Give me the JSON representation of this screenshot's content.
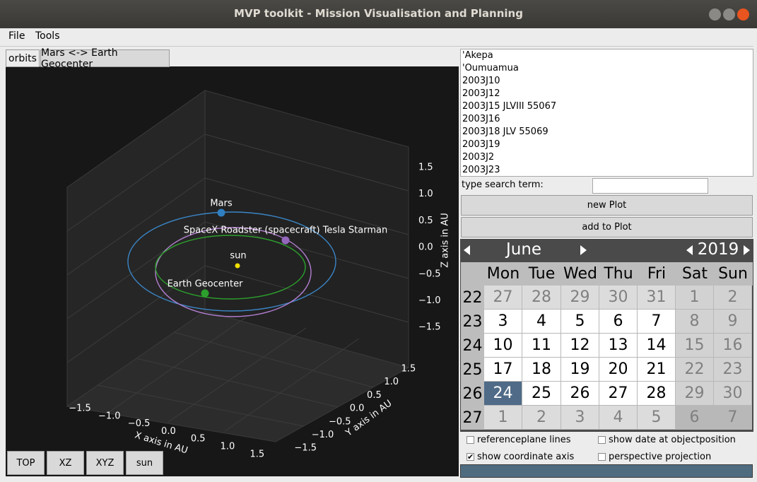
{
  "window": {
    "title": "MVP toolkit - Mission Visualisation and Planning"
  },
  "menu": [
    "File",
    "Tools"
  ],
  "tabs": [
    "orbits",
    "Mars <-> Earth Geocenter"
  ],
  "plot": {
    "objects": [
      "Mars",
      "SpaceX Roadster (spacecraft) Tesla Starman",
      "sun",
      "Earth Geocenter"
    ],
    "z_axis": {
      "label": "Z axis in AU",
      "ticks": [
        "1.5",
        "1.0",
        "0.5",
        "0.0",
        "−0.5",
        "−1.0",
        "−1.5"
      ]
    },
    "y_axis": {
      "label": "Y axis in AU",
      "ticks": [
        "1.5",
        "1.0",
        "0.5",
        "0.0",
        "−0.5",
        "−1.0",
        "−1.5"
      ]
    },
    "x_axis": {
      "label": "X axis in AU",
      "ticks": [
        "−1.5",
        "−1.0",
        "−0.5",
        "0.0",
        "0.5",
        "1.0",
        "1.5"
      ]
    }
  },
  "view_buttons": [
    "TOP",
    "XZ",
    "XYZ",
    "sun"
  ],
  "object_list": [
    "'Akepa",
    "'Oumuamua",
    "2003J10",
    "2003J12",
    "2003J15 JLVIII 55067",
    "2003J16",
    "2003J18 JLV 55069",
    "2003J19",
    "2003J2",
    "2003J23"
  ],
  "search": {
    "label": "type search term:"
  },
  "actions": [
    "new Plot",
    "add to Plot"
  ],
  "calendar": {
    "month": "June",
    "year": 2019,
    "weekdays": [
      "Mon",
      "Tue",
      "Wed",
      "Thu",
      "Fri",
      "Sat",
      "Sun"
    ],
    "weeks": [
      {
        "number": 22,
        "days": [
          27,
          28,
          29,
          30,
          31,
          1,
          2
        ]
      },
      {
        "number": 23,
        "days": [
          3,
          4,
          5,
          6,
          7,
          8,
          9
        ]
      },
      {
        "number": 24,
        "days": [
          10,
          11,
          12,
          13,
          14,
          15,
          16
        ]
      },
      {
        "number": 25,
        "days": [
          17,
          18,
          19,
          20,
          21,
          22,
          23
        ]
      },
      {
        "number": 26,
        "days": [
          24,
          25,
          26,
          27,
          28,
          29,
          30
        ]
      },
      {
        "number": 27,
        "days": [
          1,
          2,
          3,
          4,
          5,
          6,
          7
        ]
      }
    ],
    "selected": [
      4,
      0
    ]
  },
  "options": [
    {
      "label": "referenceplane lines",
      "checked": false
    },
    {
      "label": "show date at objectposition",
      "checked": false
    },
    {
      "label": "show coordinate axis",
      "checked": true
    },
    {
      "label": "perspective projection",
      "checked": false
    }
  ]
}
